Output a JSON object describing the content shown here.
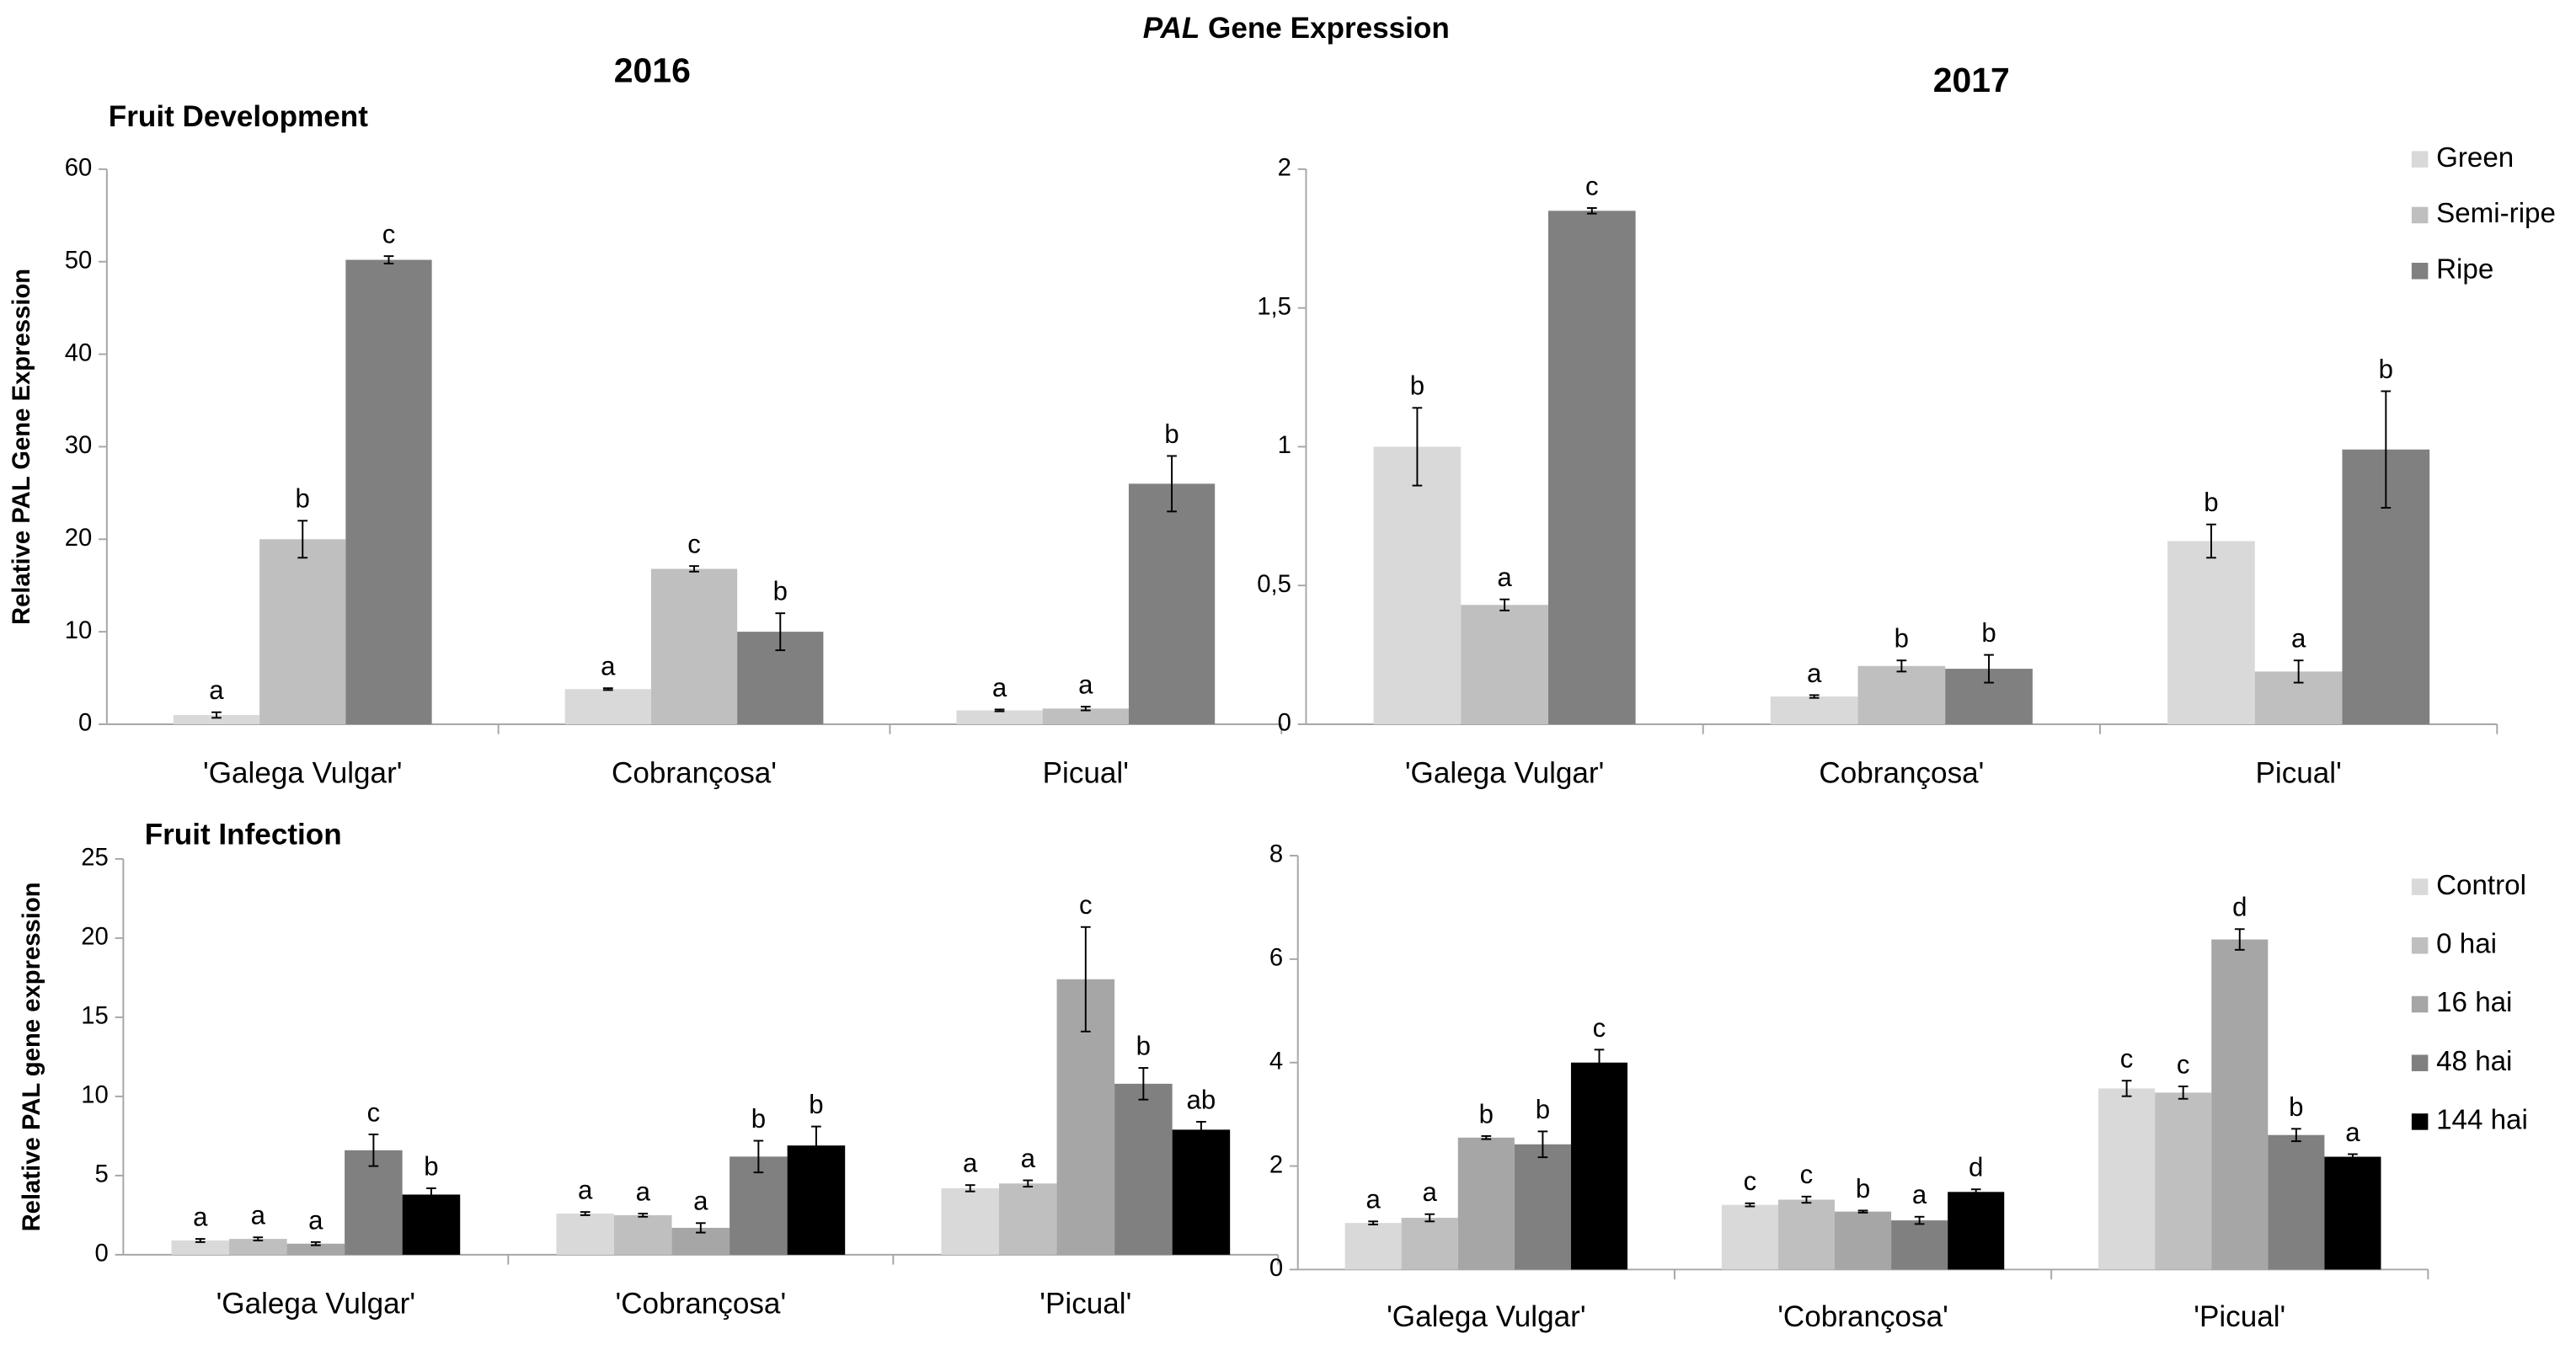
{
  "title_italic": "PAL",
  "title": "Gene Expression",
  "chart_data": [
    {
      "type": "bar",
      "title": "2016",
      "subtitle": "Fruit Development",
      "y_label": "Relative PAL Gene Expression",
      "categories": [
        "'Galega Vulgar'",
        "Cobrançosa'",
        "Picual'"
      ],
      "ylim": [
        0,
        60
      ],
      "yticks": [
        0,
        10,
        20,
        30,
        40,
        50,
        60
      ],
      "grid": false,
      "legend": false,
      "series": [
        {
          "color": "#d9d9d9",
          "values": [
            1,
            3.8,
            1.5
          ],
          "errors": [
            0.3,
            0.1,
            0.1
          ],
          "letters": [
            "a",
            "a",
            "a"
          ]
        },
        {
          "color": "#bfbfbf",
          "values": [
            20,
            16.8,
            1.7
          ],
          "errors": [
            2,
            0.3,
            0.2
          ],
          "letters": [
            "b",
            "c",
            "a"
          ]
        },
        {
          "color": "#808080",
          "values": [
            50.2,
            10,
            26
          ],
          "errors": [
            0.4,
            2,
            3
          ],
          "letters": [
            "c",
            "b",
            "b"
          ]
        }
      ]
    },
    {
      "type": "bar",
      "title": "2017",
      "categories": [
        "'Galega Vulgar'",
        "Cobrançosa'",
        "Picual'"
      ],
      "ylim": [
        0,
        2
      ],
      "yticks": [
        0,
        {
          "value": 0.5,
          "label": "0,5"
        },
        1,
        {
          "value": 1.5,
          "label": "1,5"
        },
        2
      ],
      "grid": false,
      "legend": "right",
      "series": [
        {
          "name": "Green",
          "color": "#d9d9d9",
          "values": [
            1.0,
            0.1,
            0.66
          ],
          "errors": [
            0.14,
            0.005,
            0.06
          ],
          "letters": [
            "b",
            "a",
            "b"
          ]
        },
        {
          "name": "Semi-ripe",
          "color": "#bfbfbf",
          "values": [
            0.43,
            0.21,
            0.19
          ],
          "errors": [
            0.02,
            0.02,
            0.04
          ],
          "letters": [
            "a",
            "b",
            "a"
          ]
        },
        {
          "name": "Ripe",
          "color": "#808080",
          "values": [
            1.85,
            0.2,
            0.99
          ],
          "errors": [
            0.01,
            0.05,
            0.21
          ],
          "letters": [
            "c",
            "b",
            "b"
          ]
        }
      ]
    },
    {
      "type": "bar",
      "subtitle": "Fruit Infection",
      "y_label": "Relative PAL gene expression",
      "categories": [
        "'Galega Vulgar'",
        "'Cobrançosa'",
        "'Picual'"
      ],
      "ylim": [
        0,
        25
      ],
      "yticks": [
        0,
        5,
        10,
        15,
        20,
        25
      ],
      "grid": false,
      "legend": false,
      "series": [
        {
          "color": "#d9d9d9",
          "values": [
            0.9,
            2.6,
            4.2
          ],
          "errors": [
            0.1,
            0.1,
            0.2
          ],
          "letters": [
            "a",
            "a",
            "a"
          ]
        },
        {
          "color": "#bfbfbf",
          "values": [
            1.0,
            2.5,
            4.5
          ],
          "errors": [
            0.1,
            0.1,
            0.2
          ],
          "letters": [
            "a",
            "a",
            "a"
          ]
        },
        {
          "color": "#a6a6a6",
          "values": [
            0.7,
            1.7,
            17.4
          ],
          "errors": [
            0.1,
            0.3,
            3.3
          ],
          "letters": [
            "a",
            "a",
            "c"
          ]
        },
        {
          "color": "#808080",
          "values": [
            6.6,
            6.2,
            10.8
          ],
          "errors": [
            1,
            1,
            1
          ],
          "letters": [
            "c",
            "b",
            "b"
          ]
        },
        {
          "color": "#000000",
          "values": [
            3.8,
            6.9,
            7.9
          ],
          "errors": [
            0.4,
            1.2,
            0.5
          ],
          "letters": [
            "b",
            "b",
            "ab"
          ]
        }
      ]
    },
    {
      "type": "bar",
      "categories": [
        "'Galega Vulgar'",
        "'Cobrançosa'",
        "'Picual'"
      ],
      "ylim": [
        0,
        8
      ],
      "yticks": [
        0,
        2,
        4,
        6,
        8
      ],
      "grid": false,
      "legend": "right",
      "series": [
        {
          "name": "Control",
          "color": "#d9d9d9",
          "values": [
            0.9,
            1.25,
            3.5
          ],
          "errors": [
            0.03,
            0.03,
            0.15
          ],
          "letters": [
            "a",
            "c",
            "c"
          ]
        },
        {
          "name": "0 hai",
          "color": "#bfbfbf",
          "values": [
            1.0,
            1.35,
            3.42
          ],
          "errors": [
            0.07,
            0.06,
            0.12
          ],
          "letters": [
            "a",
            "c",
            "c"
          ]
        },
        {
          "name": "16 hai",
          "color": "#a6a6a6",
          "values": [
            2.55,
            1.12,
            6.38
          ],
          "errors": [
            0.03,
            0.02,
            0.2
          ],
          "letters": [
            "b",
            "b",
            "d"
          ]
        },
        {
          "name": "48 hai",
          "color": "#808080",
          "values": [
            2.42,
            0.95,
            2.6
          ],
          "errors": [
            0.25,
            0.07,
            0.12
          ],
          "letters": [
            "b",
            "a",
            "b"
          ]
        },
        {
          "name": "144 hai",
          "color": "#000000",
          "values": [
            4.0,
            1.5,
            2.18
          ],
          "errors": [
            0.25,
            0.05,
            0.05
          ],
          "letters": [
            "c",
            "d",
            "a"
          ]
        }
      ]
    }
  ]
}
